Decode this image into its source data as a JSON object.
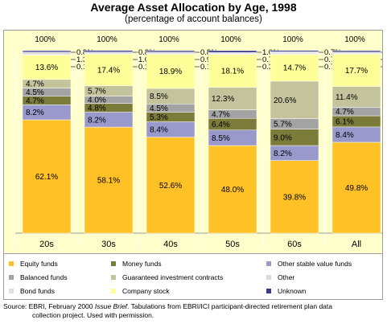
{
  "title": "Average Asset Allocation by Age, 1998",
  "subtitle": "(percentage of account balances)",
  "chart_data": {
    "type": "stacked-bar",
    "categories": [
      "20s",
      "30s",
      "40s",
      "50s",
      "60s",
      "All"
    ],
    "totals": [
      "100%",
      "100%",
      "100%",
      "100%",
      "100%",
      "100%"
    ],
    "ylim": [
      0,
      100
    ],
    "series": [
      {
        "name": "Equity funds",
        "color": "#ffc125",
        "values": [
          62.1,
          58.1,
          52.6,
          48.0,
          39.8,
          49.8
        ],
        "labels": [
          "62.1%",
          "58.1%",
          "52.6%",
          "48.0%",
          "39.8%",
          "49.8%"
        ]
      },
      {
        "name": "Other stable value funds",
        "color": "#9999cc",
        "values": [
          8.2,
          8.2,
          8.4,
          8.5,
          8.2,
          8.4
        ],
        "labels": [
          "8.2%",
          "8.2%",
          "8.4%",
          "8.5%",
          "8.2%",
          "8.4%"
        ]
      },
      {
        "name": "Money funds",
        "color": "#7b7b3a",
        "values": [
          4.7,
          4.8,
          5.3,
          6.4,
          9.0,
          6.1
        ],
        "labels": [
          "4.7%",
          "4.8%",
          "5.3%",
          "6.4%",
          "9.0%",
          "6.1%"
        ]
      },
      {
        "name": "Balanced funds",
        "color": "#a3a3a3",
        "values": [
          4.5,
          4.0,
          4.5,
          4.7,
          5.7,
          4.7
        ],
        "labels": [
          "4.5%",
          "4.0%",
          "4.5%",
          "4.7%",
          "5.7%",
          "4.7%"
        ]
      },
      {
        "name": "Guaranteed investment contracts",
        "color": "#c4c49c",
        "values": [
          4.7,
          5.7,
          8.5,
          12.3,
          20.6,
          11.4
        ],
        "labels": [
          "4.7%",
          "5.7%",
          "8.5%",
          "12.3%",
          "20.6%",
          "11.4%"
        ]
      },
      {
        "name": "Company stock",
        "color": "#ffff99",
        "values": [
          13.6,
          17.4,
          18.9,
          18.1,
          14.7,
          17.7
        ],
        "labels": [
          "13.6%",
          "17.4%",
          "18.9%",
          "18.1%",
          "14.7%",
          "17.7%"
        ]
      },
      {
        "name": "Bond funds",
        "color": "#e0e0e0",
        "values": [
          0.1,
          0.1,
          0.1,
          0.3,
          0.7,
          0.3
        ],
        "labels": [
          "0.1%",
          "0.1%",
          "0.1%",
          "0.3%",
          "0.7%",
          "0.3%"
        ]
      },
      {
        "name": "Other",
        "color": "#d9d9d9",
        "values": [
          1.3,
          1.0,
          0.9,
          0.7,
          0.7,
          0.8
        ],
        "labels": [
          "1.3%",
          "1.0%",
          "0.9%",
          "0.7%",
          "0.7%",
          "0.8%"
        ]
      },
      {
        "name": "Unknown",
        "color": "#3a3a8c",
        "values": [
          0.8,
          0.8,
          0.8,
          1.0,
          0.7,
          0.8
        ],
        "labels": [
          "0.8%",
          "0.8%",
          "0.8%",
          "1.0%",
          "0.7%",
          "0.8%"
        ]
      }
    ]
  },
  "legend": [
    {
      "name": "Equity funds",
      "color": "#ffc125"
    },
    {
      "name": "Money funds",
      "color": "#7b7b3a"
    },
    {
      "name": "Other stable value funds",
      "color": "#9999cc"
    },
    {
      "name": "Balanced funds",
      "color": "#a3a3a3"
    },
    {
      "name": "Guaranteed investment contracts",
      "color": "#c4c49c"
    },
    {
      "name": "Other",
      "color": "#d9d9d9"
    },
    {
      "name": "Bond funds",
      "color": "#e0e0e0"
    },
    {
      "name": "Company stock",
      "color": "#ffff99"
    },
    {
      "name": "Unknown",
      "color": "#3a3a8c"
    }
  ],
  "source": {
    "prefix": "Source:  EBRI, February 2000 ",
    "emphasis": "Issue Brief",
    "suffix": ". Tabulations from EBRI/ICI participant-directed retirement plan data",
    "line2": "collection project. Used with permission."
  }
}
